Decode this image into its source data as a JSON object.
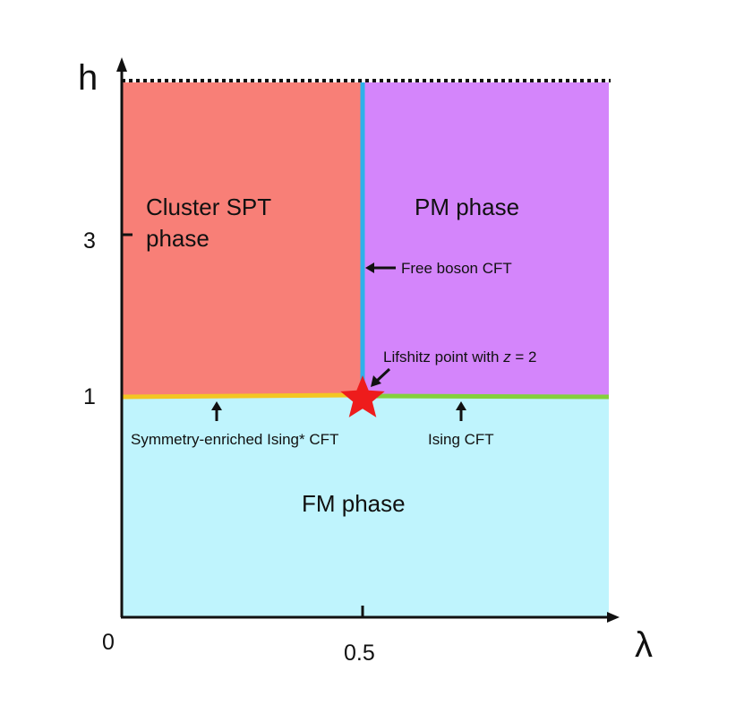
{
  "axes": {
    "x_symbol": "λ",
    "y_symbol": "h",
    "x_ticks": [
      "0",
      "0.5"
    ],
    "y_ticks": [
      "3",
      "1"
    ]
  },
  "phases": {
    "cluster_spt_line1": "Cluster SPT",
    "cluster_spt_line2": "phase",
    "pm": "PM phase",
    "fm": "FM phase"
  },
  "transitions": {
    "free_boson": "Free boson CFT",
    "lifshitz_prefix": "Lifshitz point with ",
    "lifshitz_var": "z",
    "lifshitz_suffix": " = 2",
    "symmetry_enriched": "Symmetry-enriched Ising* CFT",
    "ising": "Ising CFT"
  },
  "colors": {
    "cluster_spt": "#f87f77",
    "pm": "#d485fb",
    "fm": "#bff4fd",
    "free_boson_line": "#2eb1ea",
    "ising_line": "#84cf3c",
    "symmetry_enriched_line": "#f3c623",
    "lifshitz_star": "#ee1c1c"
  }
}
